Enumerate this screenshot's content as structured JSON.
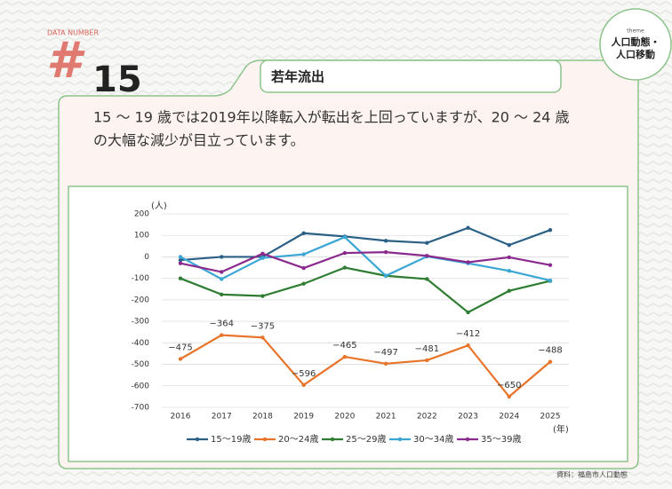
{
  "header": {
    "kicker": "DATA NUMBER",
    "hash": "#",
    "number": "15",
    "tab": "若年流出",
    "theme_small": "theme",
    "theme_1": "人口動態・",
    "theme_2": "人口移動"
  },
  "text": {
    "line_1": "15 ～ 19 歳では2019年以降転入が転出を上回っていますが、20 ～ 24 歳",
    "line_2": "の大幅な減少が目立っています。"
  },
  "source": "資料：福島市人口動態",
  "chart_data": {
    "type": "line",
    "y_unit": "(人)",
    "x_unit": "(年)",
    "categories": [
      "2016",
      "2017",
      "2018",
      "2019",
      "2020",
      "2021",
      "2022",
      "2023",
      "2024",
      "2025"
    ],
    "ylim": [
      -700,
      200
    ],
    "yticks": [
      200,
      100,
      0,
      -100,
      -200,
      -300,
      -400,
      -500,
      -600,
      -700
    ],
    "grid": true,
    "series": [
      {
        "name": "15～19歳",
        "color": "#2a5f86",
        "values": [
          -15,
          0,
          0,
          110,
          95,
          75,
          65,
          135,
          55,
          125
        ]
      },
      {
        "name": "20～24歳",
        "color": "#e8742a",
        "values": [
          -475,
          -364,
          -375,
          -596,
          -465,
          -497,
          -481,
          -412,
          -650,
          -488
        ],
        "value_labels": [
          "−475",
          "−364",
          "−375",
          "−596",
          "−465",
          "−497",
          "−481",
          "−412",
          "−650",
          "−488"
        ]
      },
      {
        "name": "25～29歳",
        "color": "#2e7d32",
        "values": [
          -100,
          -175,
          -182,
          -125,
          -50,
          -88,
          -103,
          -258,
          -158,
          -112
        ]
      },
      {
        "name": "30～34歳",
        "color": "#3aa6d4",
        "values": [
          0,
          -103,
          -5,
          12,
          92,
          -88,
          2,
          -30,
          -65,
          -110
        ]
      },
      {
        "name": "35～39歳",
        "color": "#8b2a8e",
        "values": [
          -30,
          -70,
          15,
          -52,
          18,
          22,
          5,
          -25,
          -2,
          -38
        ]
      }
    ]
  }
}
